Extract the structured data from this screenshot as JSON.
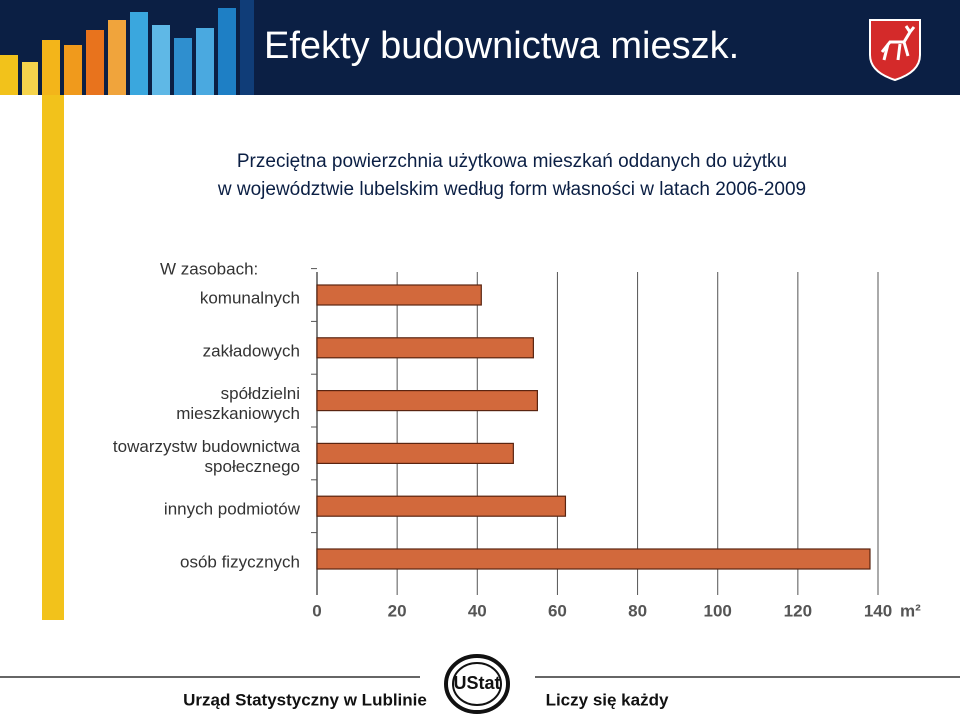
{
  "header": {
    "title": "Efekty budownictwa mieszk."
  },
  "chart_data": {
    "type": "bar",
    "orientation": "horizontal",
    "title": [
      "Przeciętna powierzchnia użytkowa mieszkań oddanych do użytku",
      "w województwie lubelskim według form własności w latach 2006-2009"
    ],
    "group_label": "W zasobach:",
    "categories": [
      [
        "komunalnych"
      ],
      [
        "zakładowych"
      ],
      [
        "spółdzielni",
        "mieszkaniowych"
      ],
      [
        "towarzystw budownictwa",
        "społecznego"
      ],
      [
        "innych podmiotów"
      ],
      [
        "osób fizycznych"
      ]
    ],
    "values": [
      41,
      54,
      55,
      49,
      62,
      138
    ],
    "color": "#d2693c",
    "xlim": [
      0,
      140
    ],
    "xticks": [
      0,
      20,
      40,
      60,
      80,
      100,
      120,
      140
    ],
    "x_unit": "m²",
    "grid": true
  },
  "footer": {
    "left": "Urząd Statystyczny w Lublinie",
    "logo": "UStat",
    "right": "Liczy się każdy"
  }
}
